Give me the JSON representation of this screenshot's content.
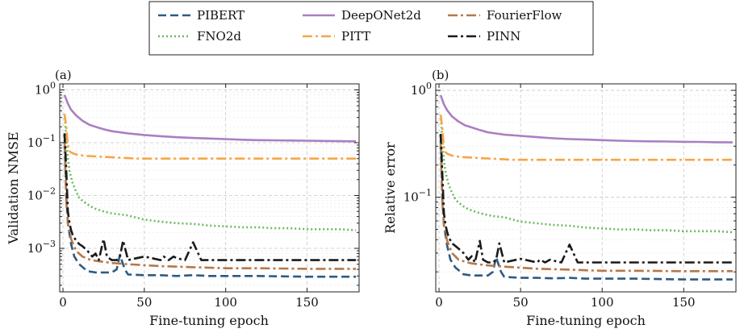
{
  "chart_data": [
    {
      "type": "line",
      "panel_label": "(a)",
      "xlabel": "Fine-tuning epoch",
      "ylabel": "Validation NMSE",
      "xlim": [
        -2,
        182
      ],
      "ylim": [
        0.00015,
        1.3
      ],
      "yscale": "log",
      "x_ticks": [
        0,
        50,
        100,
        150
      ],
      "x_tick_labels": [
        "0",
        "50",
        "100",
        "150"
      ],
      "y_ticks": [
        1,
        0.1,
        0.01,
        0.001
      ],
      "y_tick_labels": [
        "10^0",
        "10^-1",
        "10^-2",
        "10^-3"
      ],
      "grid": true,
      "series": [
        {
          "name": "PIBERT",
          "color": "#2d5a84",
          "dash": "10,5",
          "x": [
            1,
            2,
            3,
            5,
            7,
            10,
            15,
            20,
            25,
            30,
            33,
            35,
            38,
            40,
            50,
            60,
            70,
            80,
            90,
            100,
            120,
            150,
            180
          ],
          "y": [
            0.15,
            0.01,
            0.003,
            0.0012,
            0.0007,
            0.0005,
            0.00037,
            0.00035,
            0.00035,
            0.00035,
            0.0004,
            0.00075,
            0.0004,
            0.00032,
            0.00031,
            0.00031,
            0.0003,
            0.00031,
            0.0003,
            0.0003,
            0.0003,
            0.00029,
            0.00029
          ]
        },
        {
          "name": "DeepONet2d",
          "color": "#a97fc2",
          "dash": "",
          "x": [
            1,
            3,
            5,
            8,
            12,
            16,
            20,
            25,
            30,
            40,
            50,
            60,
            70,
            80,
            90,
            100,
            110,
            120,
            130,
            140,
            150,
            160,
            170,
            180
          ],
          "y": [
            0.8,
            0.55,
            0.42,
            0.33,
            0.26,
            0.22,
            0.2,
            0.18,
            0.165,
            0.15,
            0.14,
            0.133,
            0.127,
            0.123,
            0.12,
            0.117,
            0.114,
            0.112,
            0.111,
            0.11,
            0.109,
            0.108,
            0.107,
            0.106
          ]
        },
        {
          "name": "FourierFlow",
          "color": "#b5784a",
          "dash": "12,4,3,4",
          "x": [
            1,
            2,
            3,
            5,
            8,
            12,
            16,
            20,
            30,
            40,
            50,
            60,
            70,
            80,
            90,
            100,
            120,
            150,
            180
          ],
          "y": [
            0.1,
            0.008,
            0.003,
            0.0015,
            0.0009,
            0.0007,
            0.00062,
            0.00058,
            0.00053,
            0.0005,
            0.00048,
            0.00046,
            0.00045,
            0.00044,
            0.00043,
            0.00042,
            0.00042,
            0.00041,
            0.00041
          ]
        },
        {
          "name": "FNO2d",
          "color": "#6bbb5e",
          "dash": "2,3",
          "x": [
            1,
            2,
            3,
            4,
            5,
            6,
            8,
            10,
            12,
            15,
            18,
            20,
            25,
            30,
            35,
            40,
            50,
            60,
            70,
            80,
            90,
            100,
            110,
            120,
            130,
            140,
            150,
            160,
            170,
            180
          ],
          "y": [
            0.35,
            0.12,
            0.05,
            0.03,
            0.022,
            0.017,
            0.012,
            0.009,
            0.008,
            0.0068,
            0.006,
            0.0056,
            0.005,
            0.0046,
            0.0044,
            0.0042,
            0.0035,
            0.0032,
            0.003,
            0.0029,
            0.0027,
            0.0026,
            0.0025,
            0.0025,
            0.0024,
            0.0024,
            0.0023,
            0.0023,
            0.0023,
            0.0022
          ]
        },
        {
          "name": "PITT",
          "color": "#f6a648",
          "dash": "12,4,3,4",
          "x": [
            1,
            2,
            3,
            4,
            5,
            8,
            10,
            15,
            20,
            25,
            30,
            35,
            40,
            45,
            50,
            60,
            70,
            80,
            90,
            100,
            110,
            120,
            130,
            140,
            150,
            160,
            170,
            180
          ],
          "y": [
            0.35,
            0.2,
            0.09,
            0.07,
            0.065,
            0.06,
            0.058,
            0.056,
            0.055,
            0.054,
            0.053,
            0.052,
            0.051,
            0.05,
            0.05,
            0.05,
            0.05,
            0.05,
            0.05,
            0.05,
            0.05,
            0.05,
            0.05,
            0.05,
            0.05,
            0.05,
            0.05,
            0.05
          ]
        },
        {
          "name": "PINN",
          "color": "#1a1a1a",
          "dash": "12,4,3,4",
          "x": [
            1,
            2,
            3,
            4,
            5,
            6,
            8,
            10,
            12,
            15,
            18,
            20,
            22,
            25,
            27,
            30,
            33,
            35,
            37,
            40,
            45,
            50,
            55,
            60,
            62,
            65,
            68,
            70,
            75,
            80,
            85,
            90,
            95,
            100,
            110,
            120,
            130,
            140,
            150,
            160,
            170,
            180
          ],
          "y": [
            0.15,
            0.03,
            0.005,
            0.003,
            0.0022,
            0.0018,
            0.0014,
            0.0012,
            0.0011,
            0.0009,
            0.0007,
            0.0008,
            0.0006,
            0.0015,
            0.0007,
            0.0006,
            0.0006,
            0.0007,
            0.0014,
            0.0006,
            0.00065,
            0.0007,
            0.00065,
            0.0006,
            0.0007,
            0.0006,
            0.0007,
            0.00065,
            0.0006,
            0.0013,
            0.0006,
            0.0006,
            0.0006,
            0.0006,
            0.0006,
            0.0006,
            0.0006,
            0.0006,
            0.0006,
            0.0006,
            0.0006,
            0.0006
          ]
        }
      ]
    },
    {
      "type": "line",
      "panel_label": "(b)",
      "xlabel": "Fine-tuning epoch",
      "ylabel": "Relative error",
      "xlim": [
        -2,
        182
      ],
      "ylim": [
        0.013,
        1.15
      ],
      "yscale": "log",
      "x_ticks": [
        0,
        50,
        100,
        150
      ],
      "x_tick_labels": [
        "0",
        "50",
        "100",
        "150"
      ],
      "y_ticks": [
        1,
        0.1
      ],
      "y_tick_labels": [
        "10^0",
        "10^-1"
      ],
      "grid": true,
      "series": [
        {
          "name": "PIBERT",
          "color": "#2d5a84",
          "dash": "10,5",
          "x": [
            1,
            2,
            3,
            5,
            7,
            10,
            15,
            20,
            25,
            30,
            33,
            35,
            38,
            40,
            50,
            60,
            70,
            80,
            90,
            100,
            120,
            150,
            180
          ],
          "y": [
            0.39,
            0.1,
            0.055,
            0.035,
            0.026,
            0.022,
            0.019,
            0.0185,
            0.0185,
            0.0185,
            0.02,
            0.0275,
            0.02,
            0.018,
            0.0176,
            0.0176,
            0.0174,
            0.0176,
            0.0173,
            0.0173,
            0.0173,
            0.017,
            0.017
          ]
        },
        {
          "name": "DeepONet2d",
          "color": "#a97fc2",
          "dash": "",
          "x": [
            1,
            3,
            5,
            8,
            12,
            16,
            20,
            25,
            30,
            40,
            50,
            60,
            70,
            80,
            90,
            100,
            110,
            120,
            130,
            140,
            150,
            160,
            170,
            180
          ],
          "y": [
            0.9,
            0.74,
            0.65,
            0.57,
            0.51,
            0.47,
            0.45,
            0.425,
            0.405,
            0.385,
            0.375,
            0.365,
            0.356,
            0.35,
            0.346,
            0.342,
            0.338,
            0.335,
            0.333,
            0.332,
            0.33,
            0.329,
            0.327,
            0.326
          ]
        },
        {
          "name": "FourierFlow",
          "color": "#b5784a",
          "dash": "12,4,3,4",
          "x": [
            1,
            2,
            3,
            5,
            8,
            12,
            16,
            20,
            30,
            40,
            50,
            60,
            70,
            80,
            90,
            100,
            120,
            150,
            180
          ],
          "y": [
            0.32,
            0.09,
            0.055,
            0.039,
            0.03,
            0.026,
            0.0249,
            0.024,
            0.023,
            0.0224,
            0.0219,
            0.0214,
            0.0212,
            0.021,
            0.0207,
            0.0205,
            0.0205,
            0.0203,
            0.0203
          ]
        },
        {
          "name": "FNO2d",
          "color": "#6bbb5e",
          "dash": "2,3",
          "x": [
            1,
            2,
            3,
            4,
            5,
            6,
            8,
            10,
            12,
            15,
            18,
            20,
            25,
            30,
            35,
            40,
            50,
            60,
            70,
            80,
            90,
            100,
            110,
            120,
            130,
            140,
            150,
            160,
            170,
            180
          ],
          "y": [
            0.59,
            0.35,
            0.22,
            0.173,
            0.148,
            0.13,
            0.11,
            0.095,
            0.089,
            0.082,
            0.077,
            0.075,
            0.071,
            0.068,
            0.066,
            0.065,
            0.059,
            0.057,
            0.055,
            0.054,
            0.052,
            0.051,
            0.05,
            0.05,
            0.049,
            0.049,
            0.048,
            0.048,
            0.048,
            0.047
          ]
        },
        {
          "name": "PITT",
          "color": "#f6a648",
          "dash": "12,4,3,4",
          "x": [
            1,
            2,
            3,
            4,
            5,
            8,
            10,
            15,
            20,
            25,
            30,
            35,
            40,
            45,
            50,
            60,
            70,
            80,
            90,
            100,
            110,
            120,
            130,
            140,
            150,
            160,
            170,
            180
          ],
          "y": [
            0.59,
            0.45,
            0.3,
            0.265,
            0.255,
            0.245,
            0.241,
            0.237,
            0.235,
            0.232,
            0.23,
            0.228,
            0.226,
            0.224,
            0.224,
            0.224,
            0.224,
            0.224,
            0.224,
            0.224,
            0.224,
            0.224,
            0.224,
            0.224,
            0.224,
            0.224,
            0.224,
            0.224
          ]
        },
        {
          "name": "PINN",
          "color": "#1a1a1a",
          "dash": "12,4,3,4",
          "x": [
            1,
            2,
            3,
            4,
            5,
            6,
            8,
            10,
            12,
            15,
            18,
            20,
            22,
            25,
            27,
            30,
            33,
            35,
            37,
            40,
            45,
            50,
            55,
            60,
            62,
            65,
            68,
            70,
            75,
            80,
            85,
            90,
            95,
            100,
            110,
            120,
            130,
            140,
            150,
            160,
            170,
            180
          ],
          "y": [
            0.39,
            0.17,
            0.071,
            0.055,
            0.047,
            0.042,
            0.037,
            0.035,
            0.033,
            0.03,
            0.026,
            0.028,
            0.0245,
            0.039,
            0.026,
            0.0245,
            0.0245,
            0.026,
            0.037,
            0.0245,
            0.0255,
            0.0265,
            0.0255,
            0.0245,
            0.026,
            0.0245,
            0.026,
            0.0255,
            0.0245,
            0.036,
            0.0245,
            0.0245,
            0.0245,
            0.0245,
            0.0245,
            0.0245,
            0.0245,
            0.0245,
            0.0245,
            0.0245,
            0.0245,
            0.0245
          ]
        }
      ]
    }
  ],
  "legend": {
    "items": [
      {
        "label": "PIBERT",
        "color": "#2d5a84",
        "dash": "10,5"
      },
      {
        "label": "FNO2d",
        "color": "#6bbb5e",
        "dash": "2,3"
      },
      {
        "label": "DeepONet2d",
        "color": "#a97fc2",
        "dash": ""
      },
      {
        "label": "PITT",
        "color": "#f6a648",
        "dash": "12,4,3,4"
      },
      {
        "label": "FourierFlow",
        "color": "#b5784a",
        "dash": "12,4,3,4"
      },
      {
        "label": "PINN",
        "color": "#1a1a1a",
        "dash": "12,4,3,4"
      }
    ]
  }
}
